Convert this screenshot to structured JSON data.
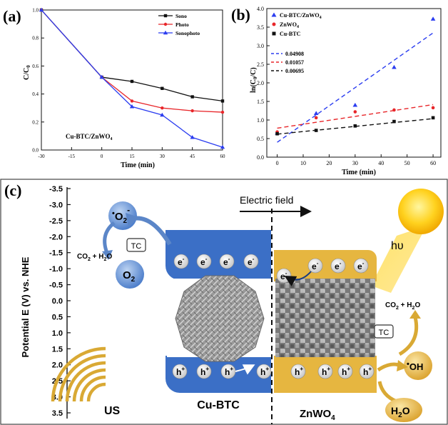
{
  "panel_a": {
    "label": "(a)",
    "ylabel": "C/C",
    "ylabel_sub": "0",
    "xlabel": "Time (min)",
    "annotation": "Cu-BTC/ZnWO",
    "annotation_sub": "4",
    "xticks": [
      "-30",
      "-15",
      "0",
      "15",
      "30",
      "45",
      "60"
    ],
    "yticks": [
      "0.0",
      "0.2",
      "0.4",
      "0.6",
      "0.8",
      "1.0"
    ],
    "colors": {
      "Sono": "#111111",
      "Photo": "#e8262a",
      "Sonophoto": "#2b3df0"
    }
  },
  "panel_b": {
    "label": "(b)",
    "ylabel": "ln(C0/C)",
    "xlabel": "Time (min)",
    "xticks": [
      "0",
      "10",
      "20",
      "30",
      "40",
      "50",
      "60"
    ],
    "yticks": [
      "0.0",
      "0.5",
      "1.0",
      "1.5",
      "2.0",
      "2.5",
      "3.0",
      "3.5",
      "4.0"
    ],
    "slopes": [
      {
        "text": "0.04908",
        "color": "#2b3df0"
      },
      {
        "text": "0.01057",
        "color": "#e8262a"
      },
      {
        "text": "0.00695",
        "color": "#111111"
      }
    ],
    "legend": [
      {
        "text": "Cu-BTC/ZnWO",
        "sub": "4",
        "color": "#2b3df0",
        "marker": "triangle"
      },
      {
        "text": "ZnWO",
        "sub": "4",
        "color": "#e8262a",
        "marker": "circle"
      },
      {
        "text": "Cu-BTC",
        "sub": "",
        "color": "#111111",
        "marker": "square"
      }
    ]
  },
  "chart_data": [
    {
      "type": "line",
      "title": "",
      "xlabel": "Time (min)",
      "ylabel": "C/C0",
      "xlim": [
        -30,
        60
      ],
      "ylim": [
        0.0,
        1.0
      ],
      "x": [
        -30,
        0,
        15,
        30,
        45,
        60
      ],
      "legend_position": "top-right",
      "series": [
        {
          "name": "Sono",
          "color": "#111111",
          "marker": "square",
          "x": [
            -30,
            0,
            15,
            30,
            45,
            60
          ],
          "values": [
            1.0,
            0.52,
            0.49,
            0.44,
            0.38,
            0.35
          ]
        },
        {
          "name": "Photo",
          "color": "#e8262a",
          "marker": "circle",
          "x": [
            -30,
            0,
            15,
            30,
            45,
            60
          ],
          "values": [
            1.0,
            0.52,
            0.35,
            0.3,
            0.28,
            0.27
          ]
        },
        {
          "name": "Sonophoto",
          "color": "#2b3df0",
          "marker": "triangle",
          "x": [
            -30,
            0,
            15,
            30,
            45,
            60
          ],
          "values": [
            1.0,
            0.52,
            0.31,
            0.25,
            0.09,
            0.02
          ]
        }
      ]
    },
    {
      "type": "scatter",
      "title": "",
      "xlabel": "Time (min)",
      "ylabel": "ln(C0/C)",
      "xlim": [
        -4,
        63
      ],
      "ylim": [
        0.0,
        4.0
      ],
      "legend_position": "top-left",
      "series": [
        {
          "name": "Cu-BTC/ZnWO4",
          "color": "#2b3df0",
          "marker": "triangle",
          "x": [
            0,
            15,
            30,
            45,
            60
          ],
          "values": [
            0.65,
            1.18,
            1.4,
            2.42,
            3.72
          ],
          "fit": {
            "slope": 0.04908,
            "intercept": 0.4,
            "style": "dashed"
          }
        },
        {
          "name": "ZnWO4",
          "color": "#e8262a",
          "marker": "circle",
          "x": [
            0,
            15,
            30,
            45,
            60
          ],
          "values": [
            0.68,
            1.06,
            1.22,
            1.27,
            1.33
          ],
          "fit": {
            "slope": 0.01057,
            "intercept": 0.78,
            "style": "dashed"
          }
        },
        {
          "name": "Cu-BTC",
          "color": "#111111",
          "marker": "square",
          "x": [
            0,
            15,
            30,
            45,
            60
          ],
          "values": [
            0.63,
            0.72,
            0.84,
            0.96,
            1.06
          ],
          "fit": {
            "slope": 0.00695,
            "intercept": 0.62,
            "style": "dashed"
          }
        }
      ]
    }
  ],
  "panel_c": {
    "label": "(c)",
    "ylabel": "Potential E (V) vs. NHE",
    "yticks": [
      "-3.5",
      "-3.0",
      "-2.5",
      "-2.0",
      "-1.5",
      "-1.0",
      "-0.5",
      "0.0",
      "0.5",
      "1.0",
      "1.5",
      "2.0",
      "2.5",
      "3.0",
      "3.5"
    ],
    "electric_field": "Electric field",
    "cu_btc": "Cu-BTC",
    "znwo": "ZnWO",
    "znwo_sub": "4",
    "us": "US",
    "hv": "hυ",
    "tc_left": "TC",
    "tc_right": "TC",
    "co2_left": "CO",
    "co2_right": "CO",
    "h2o_suffix": " + H",
    "o_suffix": "O",
    "sub2": "2",
    "o2": "O",
    "o2_rad": "O",
    "oh": "OH",
    "h2o": "H",
    "e": "e",
    "h": "h",
    "minus": "-",
    "plus": "+",
    "dot": "•",
    "colors": {
      "cu_btc": "#3b6fc6",
      "znwo": "#e6b640",
      "arrow_blue": "#5b86c8",
      "arrow_gold": "#d9a934"
    }
  }
}
